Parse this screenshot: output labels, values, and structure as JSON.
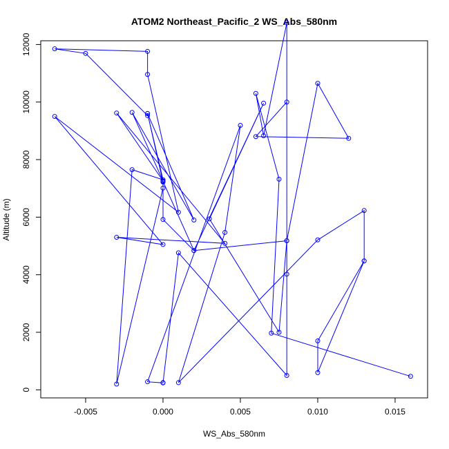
{
  "chart_data": {
    "type": "line",
    "title": "ATOM2 Northeast_Pacific_2 WS_Abs_580nm",
    "xlabel": "WS_Abs_580nm",
    "ylabel": "Altitude (m)",
    "xlim": [
      -0.0079,
      0.0171
    ],
    "ylim": [
      -280,
      12130
    ],
    "xticks": [
      -0.005,
      0.0,
      0.005,
      0.01,
      0.015
    ],
    "xtick_labels": [
      "-0.005",
      "0.000",
      "0.005",
      "0.010",
      "0.015"
    ],
    "yticks": [
      0,
      2000,
      4000,
      6000,
      8000,
      10000,
      12000
    ],
    "ytick_labels": [
      "0",
      "2000",
      "4000",
      "6000",
      "8000",
      "10000",
      "12000"
    ],
    "grid": false,
    "series": [
      {
        "color": "#0000ff",
        "marker": "open-circle",
        "x": [
          0.016,
          0.007,
          0.0075,
          0.006,
          0.0065,
          0.008,
          0.008,
          0.0075,
          0.003,
          0.0065,
          0.002,
          0.0,
          0.0,
          -0.003,
          -0.002,
          0.0,
          -0.001,
          -0.001,
          -0.005,
          -0.007,
          -0.001,
          -0.001,
          0.001,
          -0.007,
          0.0,
          -0.003,
          0.004,
          -0.003,
          0.0,
          -0.002,
          0.002,
          -0.001,
          0.0,
          0.0,
          0.002,
          0.008,
          0.01,
          0.012,
          0.006,
          0.008,
          0.008,
          0.008,
          0.001,
          0.0,
          0.0,
          -0.001,
          0.005,
          0.004,
          0.001,
          0.01,
          0.013,
          0.013,
          0.01,
          0.01,
          0.013
        ],
        "y": [
          470,
          1970,
          7320,
          10300,
          8830,
          12750,
          5180,
          2000,
          5940,
          9960,
          4840,
          7240,
          7010,
          200,
          7650,
          7300,
          9600,
          9530,
          11690,
          11850,
          11760,
          10960,
          6170,
          9500,
          5050,
          5300,
          5090,
          9620,
          7260,
          9640,
          5900,
          9600,
          7220,
          5920,
          4840,
          5180,
          10650,
          8740,
          8800,
          10000,
          4020,
          500,
          4760,
          250,
          240,
          280,
          9190,
          5470,
          250,
          5210,
          6230,
          4480,
          600,
          1700,
          4480
        ]
      }
    ]
  }
}
